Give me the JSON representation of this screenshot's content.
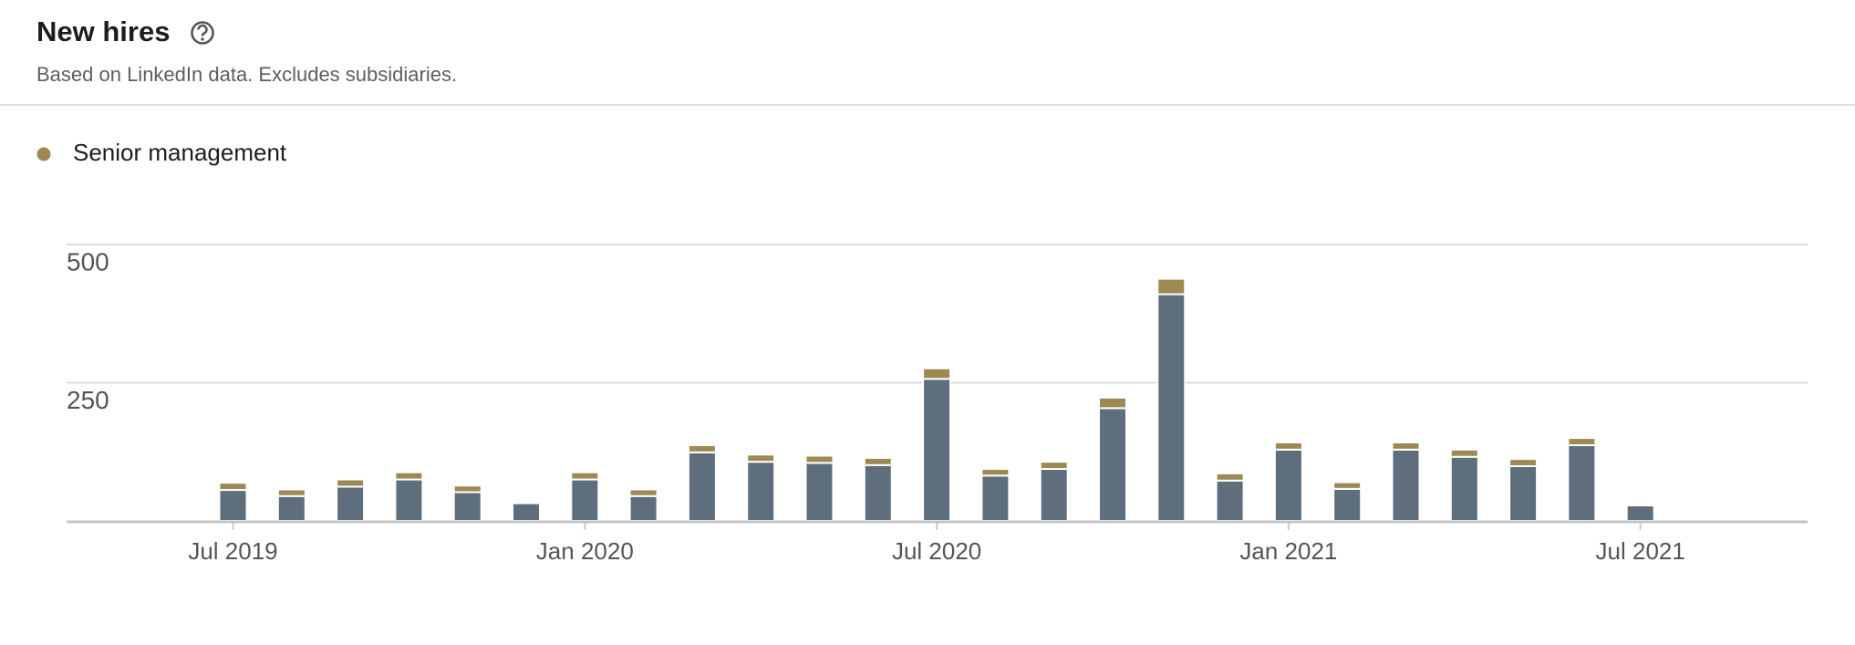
{
  "header": {
    "title": "New hires",
    "subtitle": "Based on LinkedIn data. Excludes subsidiaries."
  },
  "chart_data": {
    "type": "stacked-bar",
    "categories": [
      "Jul 2019",
      null,
      null,
      null,
      null,
      null,
      "Jan 2020",
      null,
      null,
      null,
      null,
      null,
      "Jul 2020",
      null,
      null,
      null,
      null,
      null,
      "Jan 2021",
      null,
      null,
      null,
      null,
      null,
      "Jul 2021"
    ],
    "series": [
      {
        "color": "#5f6e7d",
        "values": [
          56,
          45,
          62,
          75,
          52,
          32,
          75,
          45,
          124,
          107,
          105,
          101,
          257,
          82,
          94,
          204,
          410,
          73,
          129,
          58,
          129,
          116,
          99,
          137,
          28
        ]
      },
      {
        "name": "Senior management",
        "color": "#9c8a52",
        "values": [
          13,
          12,
          13,
          13,
          12,
          0,
          13,
          12,
          13,
          13,
          13,
          13,
          19,
          12,
          13,
          19,
          28,
          13,
          13,
          12,
          13,
          13,
          13,
          13,
          0
        ]
      }
    ],
    "ylim": [
      0,
      500
    ],
    "yticks": [
      250,
      500
    ],
    "grid": true
  }
}
